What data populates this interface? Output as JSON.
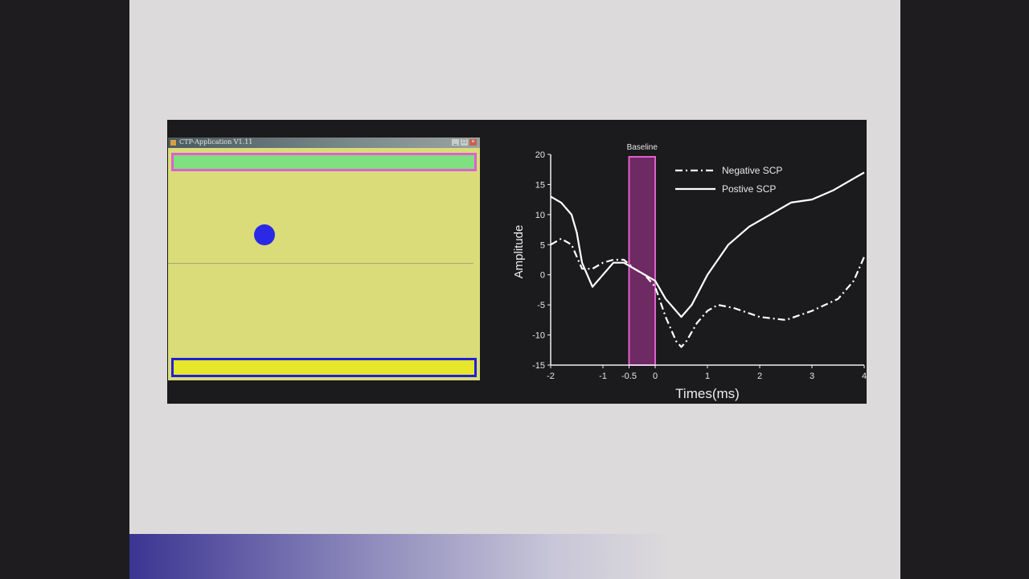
{
  "app_window": {
    "title": "CTP-Application V1.11",
    "buttons": {
      "minimize": "_",
      "maximize": "□",
      "close": "×"
    },
    "colors": {
      "background": "#d9dc78",
      "top_target_fill": "#7ee07e",
      "top_target_border": "#e060d0",
      "bottom_target_fill": "#e6e62a",
      "bottom_target_border": "#2020d8",
      "cursor": "#2a2ae6"
    }
  },
  "chart_data": {
    "type": "line",
    "title": "",
    "xlabel": "Times(ms)",
    "ylabel": "Amplitude",
    "xlim": [
      -2,
      4
    ],
    "ylim": [
      -15,
      20
    ],
    "xticks": [
      -2,
      -1,
      -0.5,
      0,
      1,
      2,
      3,
      4
    ],
    "xtick_labels": [
      "-2",
      "-1",
      "-0.5",
      "0",
      "1",
      "2",
      "3",
      "4"
    ],
    "yticks": [
      20,
      15,
      10,
      5,
      0,
      -5,
      -10,
      -15
    ],
    "ytick_labels": [
      "20",
      "15",
      "10",
      "5",
      "0",
      "-5",
      "-10",
      "-15"
    ],
    "grid": false,
    "legend_position": "top-right",
    "baseline": {
      "label": "Baseline",
      "x_start": -0.5,
      "x_end": 0,
      "color": "#e060d0",
      "fill": "#6e2a62"
    },
    "series": [
      {
        "name": "Negative SCP",
        "style": "dash-dot",
        "color": "#ffffff",
        "x": [
          -2,
          -1.8,
          -1.6,
          -1.4,
          -1.2,
          -1.0,
          -0.8,
          -0.6,
          -0.4,
          -0.2,
          0,
          0.2,
          0.4,
          0.5,
          0.6,
          0.8,
          1.0,
          1.2,
          1.5,
          2.0,
          2.5,
          3.0,
          3.5,
          3.8,
          4.0
        ],
        "y": [
          5,
          6,
          5,
          1,
          1,
          2,
          2.5,
          2.5,
          1,
          0,
          -2,
          -7,
          -11,
          -12,
          -11,
          -8,
          -6,
          -5,
          -5.5,
          -7,
          -7.5,
          -6,
          -4,
          -1,
          3
        ]
      },
      {
        "name": "Postive SCP",
        "style": "solid",
        "color": "#ffffff",
        "x": [
          -2,
          -1.8,
          -1.6,
          -1.5,
          -1.4,
          -1.2,
          -1.0,
          -0.8,
          -0.6,
          -0.4,
          -0.2,
          0,
          0.2,
          0.4,
          0.5,
          0.7,
          1.0,
          1.4,
          1.8,
          2.2,
          2.6,
          3.0,
          3.4,
          3.8,
          4.0
        ],
        "y": [
          13,
          12,
          10,
          7,
          2,
          -2,
          0,
          2,
          2,
          1,
          0,
          -1,
          -4,
          -6,
          -7,
          -5,
          0,
          5,
          8,
          10,
          12,
          12.5,
          14,
          16,
          17
        ]
      }
    ]
  }
}
